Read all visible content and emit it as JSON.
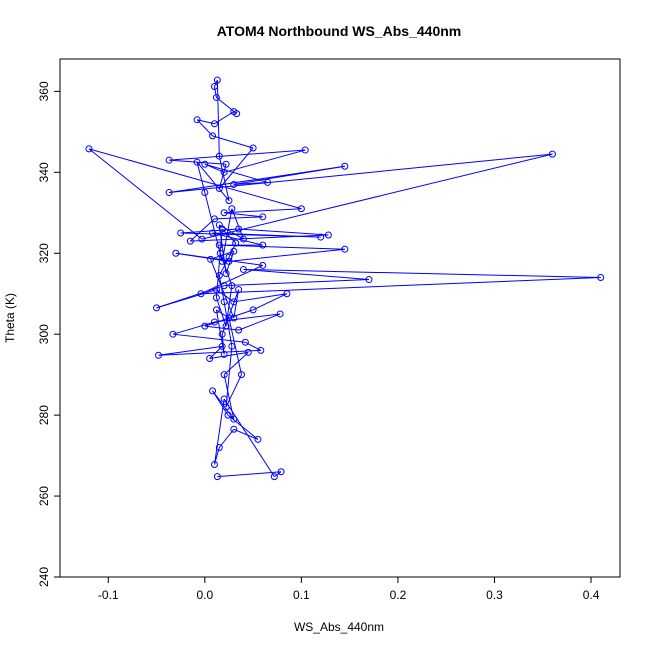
{
  "chart_data": {
    "type": "scatter",
    "title": "ATOM4 Northbound WS_Abs_440nm",
    "xlabel": "WS_Abs_440nm",
    "ylabel": "Theta (K)",
    "xlim": [
      -0.15,
      0.43
    ],
    "ylim": [
      240,
      368
    ],
    "xticks": [
      -0.1,
      0.0,
      0.1,
      0.2,
      0.3,
      0.4
    ],
    "xtick_labels": [
      "-0.1",
      "0.0",
      "0.1",
      "0.2",
      "0.3",
      "0.4"
    ],
    "yticks": [
      240,
      260,
      280,
      300,
      320,
      340,
      360
    ],
    "ytick_labels": [
      "240",
      "260",
      "280",
      "300",
      "320",
      "340",
      "360"
    ],
    "grid": false,
    "color": "#0000ff",
    "series": [
      {
        "points": [
          [
            0.013,
            264.8
          ],
          [
            0.079,
            266.0
          ],
          [
            0.072,
            264.8
          ],
          [
            0.02,
            284.0
          ],
          [
            0.01,
            267.8
          ],
          [
            0.015,
            272.0
          ],
          [
            0.03,
            276.5
          ],
          [
            0.055,
            274.0
          ],
          [
            0.024,
            280.0
          ],
          [
            0.008,
            286.0
          ],
          [
            0.03,
            279.0
          ],
          [
            0.02,
            290.0
          ],
          [
            0.045,
            295.5
          ],
          [
            0.005,
            294.0
          ],
          [
            0.018,
            297.0
          ],
          [
            -0.048,
            294.8
          ],
          [
            0.058,
            296.0
          ],
          [
            0.042,
            298.0
          ],
          [
            -0.033,
            300.0
          ],
          [
            0.01,
            303.0
          ],
          [
            0.078,
            305.0
          ],
          [
            0.035,
            301.0
          ],
          [
            0.0,
            302.0
          ],
          [
            0.05,
            306.0
          ],
          [
            0.085,
            310.0
          ],
          [
            0.03,
            308.0
          ],
          [
            0.012,
            311.0
          ],
          [
            -0.05,
            306.5
          ],
          [
            0.02,
            312.0
          ],
          [
            0.17,
            313.5
          ],
          [
            0.04,
            316.0
          ],
          [
            0.41,
            314.0
          ],
          [
            -0.004,
            310.0
          ],
          [
            0.06,
            317.0
          ],
          [
            -0.03,
            320.0
          ],
          [
            0.025,
            318.0
          ],
          [
            0.145,
            321.0
          ],
          [
            0.015,
            322.0
          ],
          [
            0.06,
            322.0
          ],
          [
            0.008,
            325.0
          ],
          [
            0.12,
            324.0
          ],
          [
            -0.025,
            325.0
          ],
          [
            0.035,
            326.0
          ],
          [
            0.128,
            324.5
          ],
          [
            -0.015,
            323.0
          ],
          [
            0.01,
            328.5
          ],
          [
            0.06,
            329.0
          ],
          [
            0.02,
            330.0
          ],
          [
            0.1,
            331.0
          ],
          [
            -0.12,
            345.8
          ],
          [
            -0.003,
            323.5
          ],
          [
            0.36,
            344.5
          ],
          [
            -0.037,
            335.0
          ],
          [
            0.145,
            341.5
          ],
          [
            0.03,
            337.0
          ],
          [
            0.065,
            337.5
          ],
          [
            0.0,
            342.0
          ],
          [
            0.02,
            340.0
          ],
          [
            0.104,
            345.5
          ],
          [
            -0.037,
            343.0
          ],
          [
            0.022,
            342.0
          ],
          [
            0.015,
            336.0
          ],
          [
            0.05,
            346.0
          ],
          [
            0.008,
            349.0
          ],
          [
            -0.008,
            353.0
          ],
          [
            0.01,
            352.0
          ],
          [
            0.03,
            355.0
          ],
          [
            0.033,
            354.5
          ],
          [
            0.012,
            358.5
          ],
          [
            0.01,
            361.2
          ],
          [
            0.013,
            362.8
          ],
          [
            0.015,
            344.0
          ],
          [
            0.025,
            333.0
          ],
          [
            -0.008,
            342.5
          ],
          [
            0.0,
            335.0
          ],
          [
            0.018,
            318.0
          ],
          [
            0.028,
            331.0
          ],
          [
            0.04,
            323.5
          ],
          [
            0.015,
            327.0
          ],
          [
            0.022,
            315.0
          ],
          [
            0.03,
            320.5
          ],
          [
            0.006,
            318.5
          ],
          [
            0.03,
            304.0
          ],
          [
            0.035,
            311.0
          ],
          [
            0.018,
            300.0
          ],
          [
            0.02,
            295.0
          ],
          [
            0.012,
            306.0
          ],
          [
            0.025,
            304.0
          ],
          [
            0.038,
            290.0
          ],
          [
            0.022,
            282.0
          ],
          [
            0.028,
            297.0
          ],
          [
            0.02,
            308.0
          ],
          [
            0.015,
            314.5
          ],
          [
            0.025,
            319.0
          ],
          [
            0.032,
            322.5
          ],
          [
            0.018,
            326.0
          ],
          [
            0.012,
            309.0
          ],
          [
            0.022,
            302.0
          ],
          [
            0.028,
            312.0
          ],
          [
            0.016,
            320.0
          ]
        ]
      }
    ]
  }
}
